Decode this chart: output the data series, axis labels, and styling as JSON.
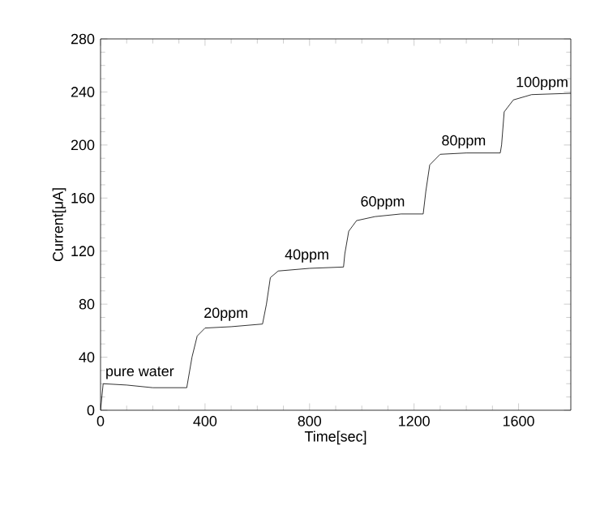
{
  "chart_data": {
    "type": "line",
    "xlabel": "Time[sec]",
    "ylabel": "Current[μA]",
    "color": "#000000",
    "x": [
      0,
      10,
      100,
      200,
      330,
      350,
      370,
      400,
      500,
      620,
      635,
      650,
      680,
      800,
      930,
      935,
      950,
      980,
      1050,
      1150,
      1235,
      1245,
      1260,
      1300,
      1400,
      1530,
      1535,
      1545,
      1580,
      1650,
      1800
    ],
    "values": [
      0,
      20,
      19,
      17,
      17,
      40,
      56,
      62,
      63,
      65,
      80,
      100,
      105,
      107,
      108,
      118,
      135,
      143,
      146,
      148,
      148,
      165,
      185,
      193,
      194,
      194,
      200,
      225,
      234,
      238,
      239
    ],
    "xlim": [
      0,
      1800
    ],
    "ylim": [
      0,
      280
    ],
    "xticks": [
      0,
      400,
      800,
      1200,
      1600
    ],
    "yticks": [
      0,
      40,
      80,
      120,
      160,
      200,
      240,
      280
    ],
    "marker": "none",
    "line_style": "solid",
    "annotations": [
      {
        "text": "pure water",
        "x": 150,
        "y": 22
      },
      {
        "text": "20ppm",
        "x": 480,
        "y": 66
      },
      {
        "text": "40ppm",
        "x": 790,
        "y": 110
      },
      {
        "text": "60ppm",
        "x": 1080,
        "y": 150
      },
      {
        "text": "80ppm",
        "x": 1390,
        "y": 196
      },
      {
        "text": "100ppm",
        "x": 1690,
        "y": 240
      }
    ]
  }
}
